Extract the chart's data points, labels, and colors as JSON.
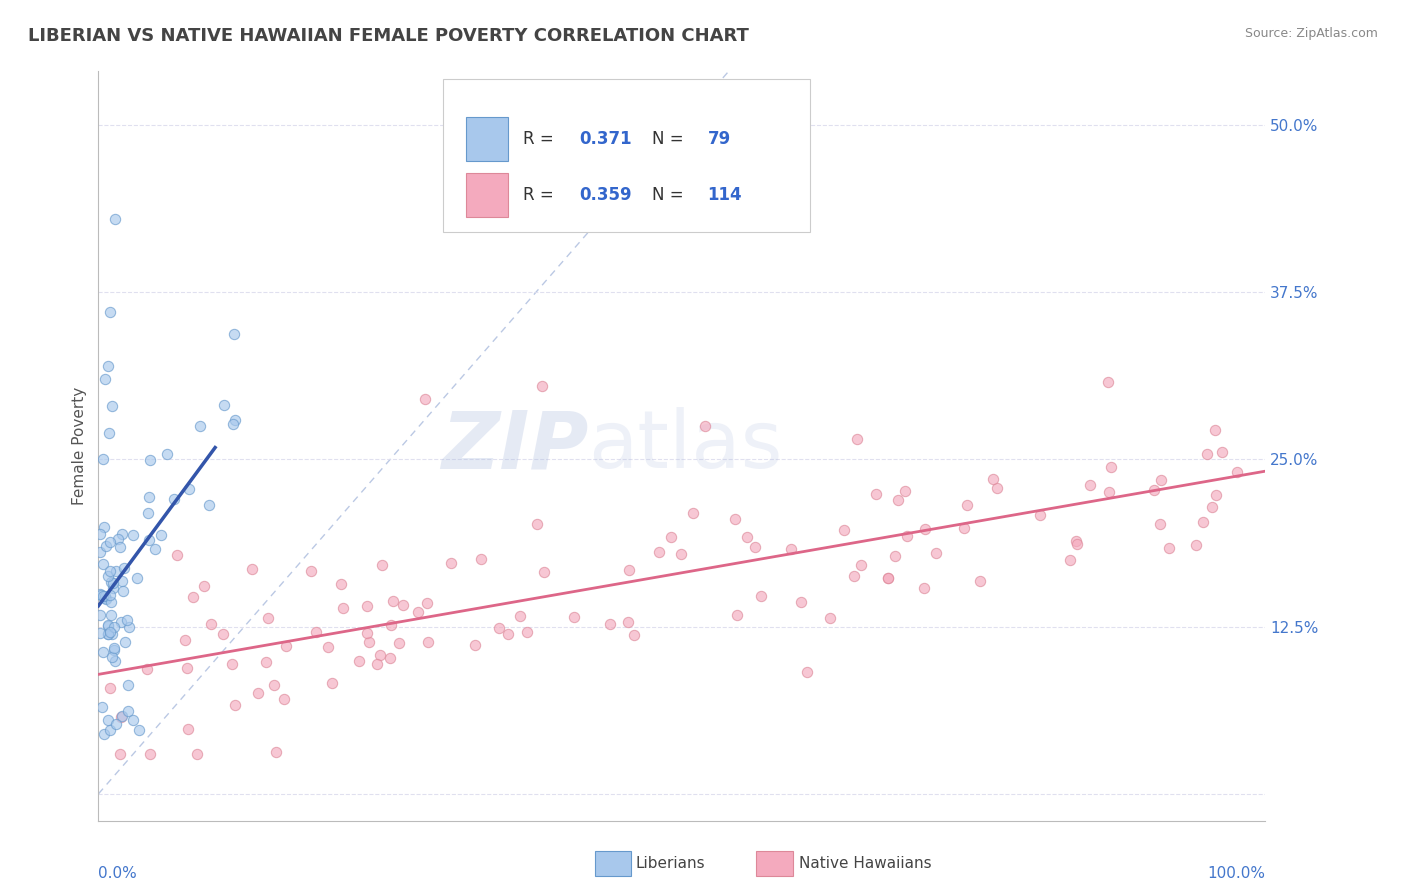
{
  "title": "LIBERIAN VS NATIVE HAWAIIAN FEMALE POVERTY CORRELATION CHART",
  "source_text": "Source: ZipAtlas.com",
  "ylabel": "Female Poverty",
  "yticks": [
    0.0,
    0.125,
    0.25,
    0.375,
    0.5
  ],
  "ytick_labels": [
    "",
    "12.5%",
    "25.0%",
    "37.5%",
    "50.0%"
  ],
  "xmin": 0.0,
  "xmax": 1.0,
  "ymin": -0.02,
  "ymax": 0.54,
  "liberian_color": "#A8C8EC",
  "liberian_edge": "#6699CC",
  "native_hawaiian_color": "#F4AABE",
  "native_hawaiian_edge": "#DD8899",
  "liberian_R": 0.371,
  "liberian_N": 79,
  "native_hawaiian_R": 0.359,
  "native_hawaiian_N": 114,
  "liberian_trend_color": "#3355AA",
  "native_hawaiian_trend_color": "#DD6688",
  "diag_line_color": "#AABBDD",
  "legend_text_color": "#333333",
  "legend_value_color": "#3366CC",
  "background_color": "#FFFFFF",
  "grid_color": "#DDDDEE",
  "marker_size": 55,
  "marker_alpha": 0.65
}
